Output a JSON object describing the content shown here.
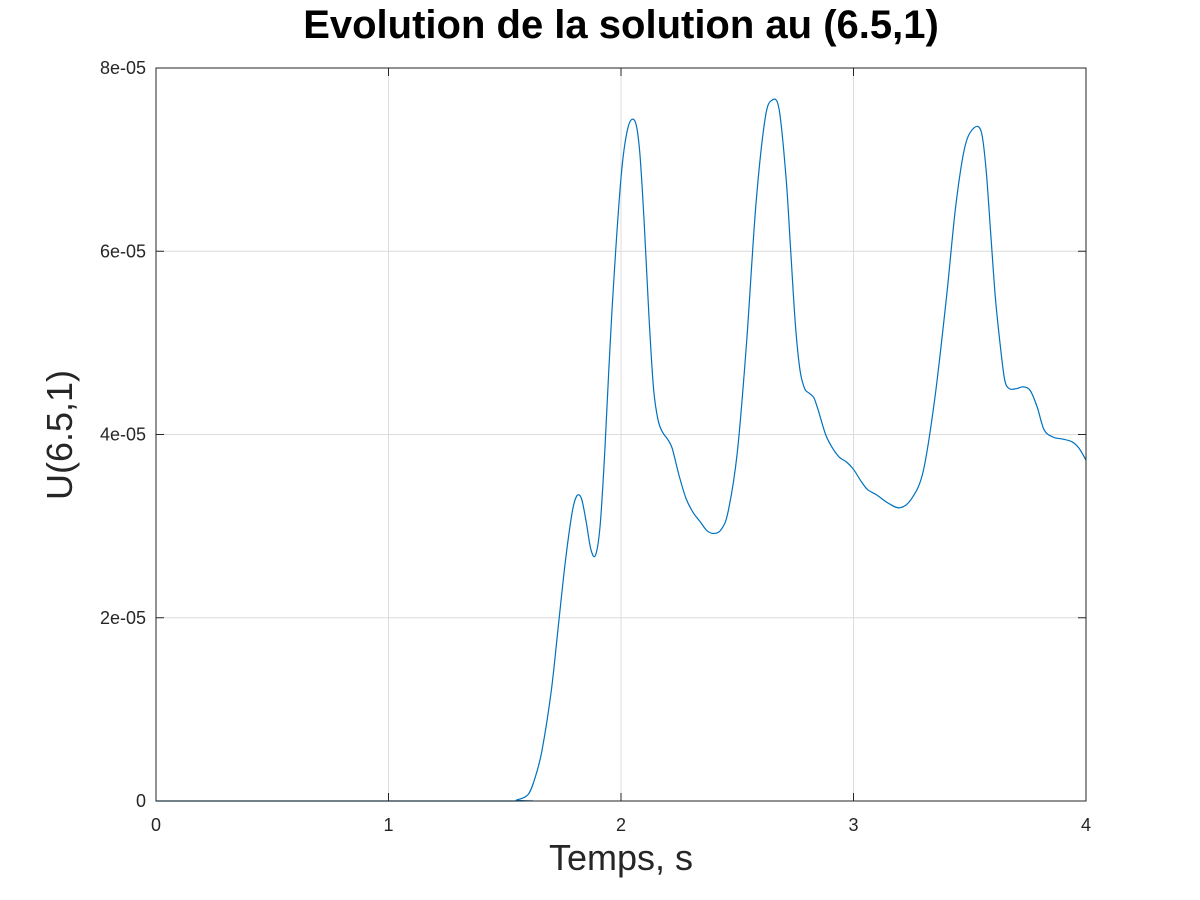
{
  "chart_data": {
    "type": "line",
    "title": "Evolution de la solution au (6.5,1)",
    "xlabel": "Temps, s",
    "ylabel": "U(6.5,1)",
    "xlim": [
      0,
      4
    ],
    "ylim": [
      0,
      8e-05
    ],
    "xticks": [
      0,
      1,
      2,
      3,
      4
    ],
    "xtick_labels": [
      "0",
      "1",
      "2",
      "3",
      "4"
    ],
    "yticks": [
      0,
      2e-05,
      4e-05,
      6e-05,
      8e-05
    ],
    "ytick_labels": [
      "0",
      "2e-05",
      "4e-05",
      "6e-05",
      "8e-05"
    ],
    "grid": true,
    "line_color": "#0072bd",
    "series": [
      {
        "x": [
          0,
          1.5,
          1.55,
          1.6,
          1.63,
          1.66,
          1.7,
          1.73,
          1.76,
          1.79,
          1.81,
          1.83,
          1.85,
          1.87,
          1.89,
          1.91,
          1.93,
          1.96,
          2.0,
          2.03,
          2.06,
          2.08,
          2.1,
          2.12,
          2.14,
          2.16,
          2.18,
          2.2,
          2.22,
          2.25,
          2.28,
          2.31,
          2.34,
          2.37,
          2.4,
          2.43,
          2.46,
          2.5,
          2.54,
          2.58,
          2.62,
          2.65,
          2.68,
          2.71,
          2.73,
          2.75,
          2.77,
          2.79,
          2.81,
          2.83,
          2.85,
          2.88,
          2.91,
          2.94,
          2.97,
          3.0,
          3.03,
          3.06,
          3.1,
          3.15,
          3.2,
          3.25,
          3.3,
          3.35,
          3.4,
          3.44,
          3.48,
          3.52,
          3.55,
          3.57,
          3.59,
          3.61,
          3.63,
          3.65,
          3.67,
          3.7,
          3.73,
          3.76,
          3.79,
          3.82,
          3.86,
          3.9,
          3.94,
          3.97,
          4.0
        ],
        "y": [
          0,
          0,
          1e-07,
          7e-07,
          2.5e-06,
          5.5e-06,
          1.2e-05,
          1.9e-05,
          2.6e-05,
          3.15e-05,
          3.33e-05,
          3.3e-05,
          3.05e-05,
          2.75e-05,
          2.68e-05,
          3e-05,
          3.8e-05,
          5.3e-05,
          6.8e-05,
          7.35e-05,
          7.42e-05,
          7.1e-05,
          6.3e-05,
          5.3e-05,
          4.5e-05,
          4.15e-05,
          4.02e-05,
          3.95e-05,
          3.85e-05,
          3.55e-05,
          3.3e-05,
          3.15e-05,
          3.05e-05,
          2.95e-05,
          2.92e-05,
          2.96e-05,
          3.15e-05,
          3.8e-05,
          5e-05,
          6.5e-05,
          7.45e-05,
          7.65e-05,
          7.55e-05,
          6.8e-05,
          6e-05,
          5.2e-05,
          4.7e-05,
          4.5e-05,
          4.45e-05,
          4.4e-05,
          4.25e-05,
          4e-05,
          3.85e-05,
          3.75e-05,
          3.7e-05,
          3.62e-05,
          3.5e-05,
          3.4e-05,
          3.34e-05,
          3.25e-05,
          3.2e-05,
          3.3e-05,
          3.6e-05,
          4.4e-05,
          5.5e-05,
          6.5e-05,
          7.15e-05,
          7.35e-05,
          7.3e-05,
          6.9e-05,
          6.2e-05,
          5.5e-05,
          5e-05,
          4.6e-05,
          4.5e-05,
          4.5e-05,
          4.52e-05,
          4.48e-05,
          4.3e-05,
          4.05e-05,
          3.97e-05,
          3.95e-05,
          3.92e-05,
          3.85e-05,
          3.72e-05
        ]
      }
    ]
  }
}
